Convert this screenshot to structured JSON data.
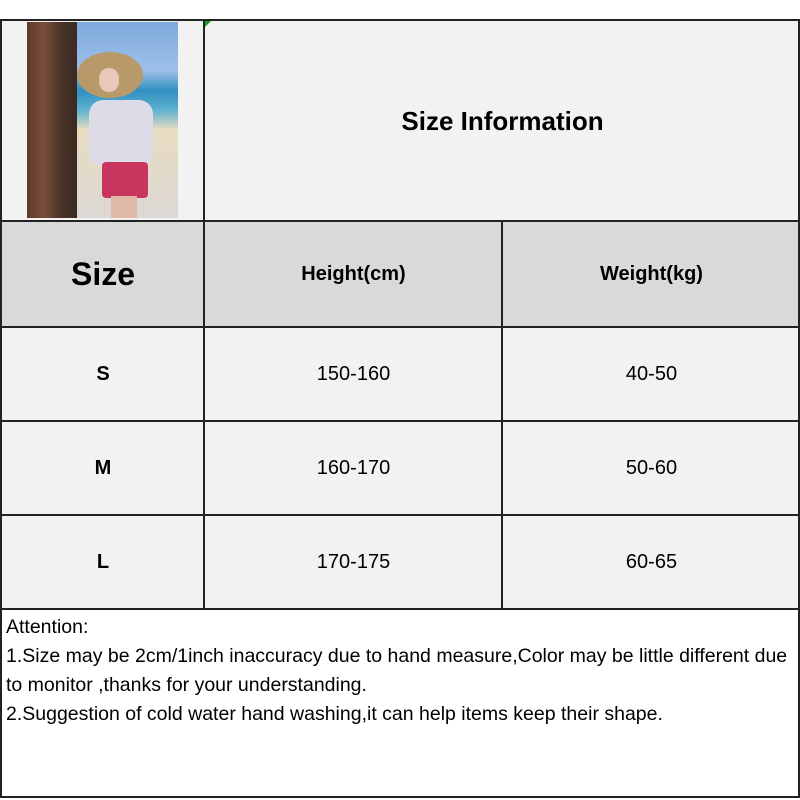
{
  "title": "Size Information",
  "table": {
    "headers": [
      "Size",
      "Height(cm)",
      "Weight(kg)"
    ],
    "rows": [
      {
        "size": "S",
        "height": "150-160",
        "weight": "40-50"
      },
      {
        "size": "M",
        "height": "160-170",
        "weight": "50-60"
      },
      {
        "size": "L",
        "height": "170-175",
        "weight": "60-65"
      }
    ]
  },
  "notes": {
    "heading": "Attention:",
    "line1": "1.Size may be 2cm/1inch inaccuracy due to hand measure,Color may be little different due to monitor ,thanks for your understanding.",
    "line2": "2.Suggestion of cold water hand washing,it can help items keep their shape."
  },
  "colors": {
    "header_bg": "#d9d9d9",
    "cell_bg": "#f2f2f2",
    "border": "#222222"
  }
}
